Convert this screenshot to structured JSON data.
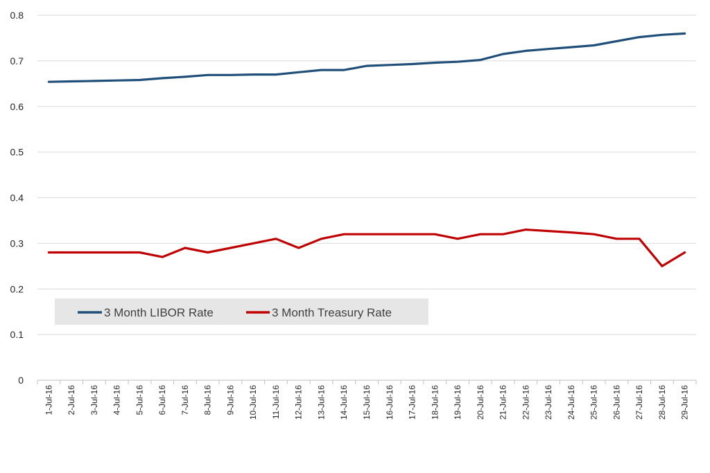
{
  "chart_data": {
    "type": "line",
    "title": "",
    "xlabel": "",
    "ylabel": "",
    "ylim": [
      0,
      0.8
    ],
    "y_ticks": [
      "0",
      "0.1",
      "0.2",
      "0.3",
      "0.4",
      "0.5",
      "0.6",
      "0.7",
      "0.8"
    ],
    "grid": "horizontal",
    "legend_position": "lower-left",
    "categories": [
      "1-Jul-16",
      "2-Jul-16",
      "3-Jul-16",
      "4-Jul-16",
      "5-Jul-16",
      "6-Jul-16",
      "7-Jul-16",
      "8-Jul-16",
      "9-Jul-16",
      "10-Jul-16",
      "11-Jul-16",
      "12-Jul-16",
      "13-Jul-16",
      "14-Jul-16",
      "15-Jul-16",
      "16-Jul-16",
      "17-Jul-16",
      "18-Jul-16",
      "19-Jul-16",
      "20-Jul-16",
      "21-Jul-16",
      "22-Jul-16",
      "23-Jul-16",
      "24-Jul-16",
      "25-Jul-16",
      "26-Jul-16",
      "27-Jul-16",
      "28-Jul-16",
      "29-Jul-16"
    ],
    "series": [
      {
        "name": "3 Month LIBOR Rate",
        "color": "#1f4e79",
        "values": [
          0.654,
          0.655,
          0.656,
          0.657,
          0.658,
          0.662,
          0.665,
          0.669,
          0.669,
          0.67,
          0.67,
          0.675,
          0.68,
          0.68,
          0.689,
          0.691,
          0.693,
          0.696,
          0.698,
          0.702,
          0.715,
          0.722,
          0.726,
          0.73,
          0.734,
          0.743,
          0.752,
          0.757,
          0.76
        ]
      },
      {
        "name": "3 Month Treasury Rate",
        "color": "#c00000",
        "values": [
          0.28,
          0.28,
          0.28,
          0.28,
          0.28,
          0.27,
          0.29,
          0.28,
          0.29,
          0.3,
          0.31,
          0.29,
          0.31,
          0.32,
          0.32,
          0.32,
          0.32,
          0.32,
          0.31,
          0.32,
          0.32,
          0.33,
          0.327,
          0.324,
          0.32,
          0.31,
          0.31,
          0.25,
          0.28
        ]
      }
    ]
  },
  "colors": {
    "gridline": "#d9d9d9",
    "axis": "#bfbfbf",
    "legend_bg": "#e7e6e6"
  }
}
